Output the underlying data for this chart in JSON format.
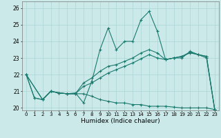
{
  "title": "",
  "xlabel": "Humidex (Indice chaleur)",
  "ylabel": "",
  "background_color": "#cce9e9",
  "grid_color": "#aad4d4",
  "line_color": "#1a7a6e",
  "xlim": [
    -0.5,
    23.5
  ],
  "ylim": [
    19.85,
    26.4
  ],
  "yticks": [
    20,
    21,
    22,
    23,
    24,
    25,
    26
  ],
  "xticks": [
    0,
    1,
    2,
    3,
    4,
    5,
    6,
    7,
    8,
    9,
    10,
    11,
    12,
    13,
    14,
    15,
    16,
    17,
    18,
    19,
    20,
    21,
    22,
    23
  ],
  "series": [
    {
      "x": [
        0,
        1,
        2,
        3,
        4,
        5,
        6,
        7,
        8,
        9,
        10,
        11,
        12,
        13,
        14,
        15,
        16,
        17,
        18,
        19,
        20,
        21,
        22,
        23
      ],
      "y": [
        22.0,
        20.6,
        20.5,
        21.0,
        20.9,
        20.85,
        20.9,
        20.3,
        21.6,
        23.5,
        24.8,
        23.5,
        24.0,
        24.0,
        25.3,
        25.8,
        24.6,
        22.9,
        23.0,
        23.0,
        23.4,
        23.2,
        23.1,
        19.9
      ]
    },
    {
      "x": [
        0,
        2,
        3,
        4,
        5,
        6,
        7,
        8,
        9,
        10,
        11,
        12,
        13,
        14,
        15,
        16,
        17,
        18,
        19,
        20,
        21,
        22,
        23
      ],
      "y": [
        22.0,
        20.5,
        21.0,
        20.9,
        20.85,
        20.85,
        21.5,
        21.8,
        22.2,
        22.5,
        22.6,
        22.8,
        23.0,
        23.3,
        23.5,
        23.3,
        22.9,
        23.0,
        23.1,
        23.35,
        23.2,
        23.1,
        19.9
      ]
    },
    {
      "x": [
        0,
        2,
        3,
        4,
        5,
        6,
        7,
        8,
        9,
        10,
        11,
        12,
        13,
        14,
        15,
        16,
        17,
        18,
        19,
        20,
        21,
        22,
        23
      ],
      "y": [
        22.0,
        20.5,
        21.0,
        20.9,
        20.85,
        20.85,
        21.3,
        21.5,
        21.8,
        22.1,
        22.3,
        22.5,
        22.7,
        22.95,
        23.2,
        23.0,
        22.9,
        23.0,
        23.1,
        23.3,
        23.2,
        23.0,
        19.9
      ]
    },
    {
      "x": [
        0,
        1,
        2,
        3,
        4,
        5,
        6,
        7,
        8,
        9,
        10,
        11,
        12,
        13,
        14,
        15,
        16,
        17,
        18,
        19,
        20,
        21,
        22,
        23
      ],
      "y": [
        22.0,
        20.6,
        20.5,
        21.0,
        20.9,
        20.85,
        20.85,
        20.85,
        20.7,
        20.5,
        20.4,
        20.3,
        20.3,
        20.2,
        20.2,
        20.1,
        20.1,
        20.1,
        20.05,
        20.0,
        20.0,
        20.0,
        20.0,
        19.9
      ]
    }
  ]
}
